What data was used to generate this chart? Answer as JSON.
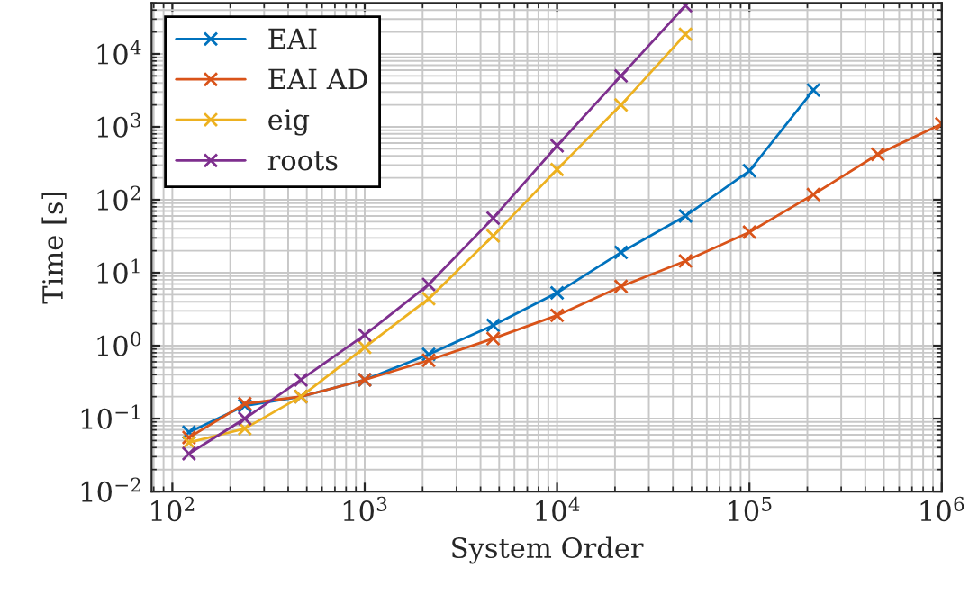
{
  "chart_data": {
    "type": "line",
    "xlabel": "System Order",
    "ylabel": "Time [s]",
    "log": "xy",
    "grid": true,
    "legend": "top left",
    "marker": "cross",
    "line_style": "solid",
    "xlim": [
      78,
      1000000
    ],
    "ylim": [
      0.01,
      50000
    ],
    "xticks": [
      {
        "value": 100,
        "label": "10$^{2}$"
      },
      {
        "value": 1000,
        "label": "10$^{3}$"
      },
      {
        "value": 10000,
        "label": "10$^{4}$"
      },
      {
        "value": 100000,
        "label": "10$^{5}$"
      },
      {
        "value": 1000000,
        "label": "10$^{6}$"
      }
    ],
    "yticks": [
      {
        "value": 0.01,
        "label": "10$^{−2}$"
      },
      {
        "value": 0.1,
        "label": "10$^{−1}$"
      },
      {
        "value": 1,
        "label": "10$^{0}$"
      },
      {
        "value": 10,
        "label": "10$^{1}$"
      },
      {
        "value": 100,
        "label": "10$^{2}$"
      },
      {
        "value": 1000,
        "label": "10$^{3}$"
      },
      {
        "value": 10000,
        "label": "10$^{4}$"
      }
    ],
    "series": [
      {
        "name": "EAI",
        "color": "#0072bd",
        "x": [
          122,
          238,
          466,
          1000,
          2150,
          4650,
          10000,
          21500,
          46500,
          100000,
          215000
        ],
        "values": [
          0.065,
          0.15,
          0.2,
          0.34,
          0.76,
          1.9,
          5.3,
          19,
          60,
          250,
          3200
        ]
      },
      {
        "name": "EAI AD",
        "color": "#d95319",
        "x": [
          122,
          238,
          466,
          1000,
          2150,
          4650,
          10000,
          21500,
          46500,
          100000,
          215000,
          465000,
          1000000
        ],
        "values": [
          0.055,
          0.16,
          0.2,
          0.34,
          0.63,
          1.25,
          2.6,
          6.5,
          14.5,
          36,
          118,
          420,
          1100
        ]
      },
      {
        "name": "eig",
        "color": "#edb120",
        "x": [
          122,
          238,
          466,
          1000,
          2150,
          4650,
          10000,
          21500,
          46500
        ],
        "values": [
          0.047,
          0.073,
          0.2,
          0.95,
          4.4,
          32,
          260,
          2000,
          18600
        ]
      },
      {
        "name": "roots",
        "color": "#7e2f8e",
        "x": [
          122,
          238,
          466,
          1000,
          2150,
          4650,
          10000,
          21500,
          46500
        ],
        "values": [
          0.033,
          0.1,
          0.34,
          1.4,
          6.9,
          56,
          550,
          5000,
          46000
        ]
      }
    ]
  }
}
